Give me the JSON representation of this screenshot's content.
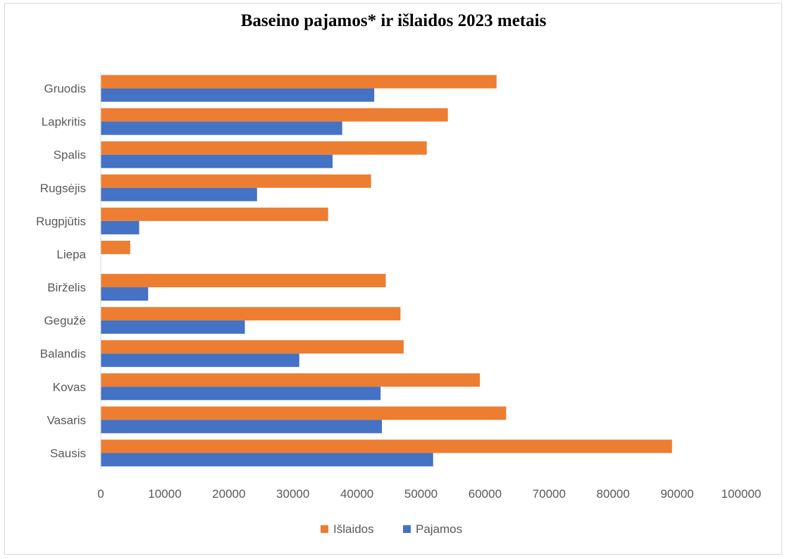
{
  "chart_data": {
    "type": "bar",
    "orientation": "horizontal",
    "title": "Baseino pajamos* ir išlaidos 2023 metais",
    "categories": [
      "Sausis",
      "Vasaris",
      "Kovas",
      "Balandis",
      "Gegužė",
      "Birželis",
      "Liepa",
      "Rugpjūtis",
      "Rugsėjis",
      "Spalis",
      "Lapkritis",
      "Gruodis"
    ],
    "series": [
      {
        "name": "Išlaidos",
        "color": "#ED7D31",
        "values": [
          89200,
          63300,
          59200,
          47300,
          46800,
          44500,
          4600,
          35500,
          42200,
          50900,
          54200,
          61800
        ]
      },
      {
        "name": "Pajamos",
        "color": "#4472C4",
        "values": [
          51900,
          43900,
          43700,
          31000,
          22500,
          7400,
          0,
          6000,
          24400,
          36200,
          37700,
          42700
        ]
      }
    ],
    "xlim": [
      0,
      100000
    ],
    "xticks": [
      "0",
      "10000",
      "20000",
      "30000",
      "40000",
      "50000",
      "60000",
      "70000",
      "80000",
      "90000",
      "100000"
    ],
    "grid": false,
    "legend_position": "bottom"
  }
}
